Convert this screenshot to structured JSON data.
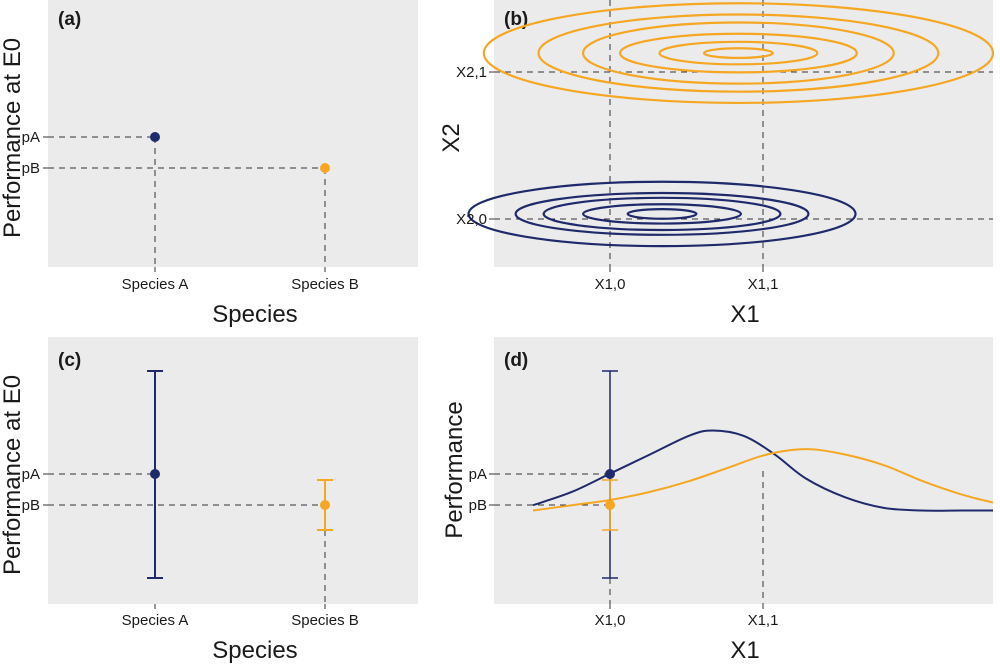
{
  "chart_data": [
    {
      "panel": "(a)",
      "type": "scatter",
      "xlabel": "Species",
      "ylabel": "Performance at E0",
      "categories": [
        "Species A",
        "Species B"
      ],
      "y_tick_labels": [
        "pA",
        "pB"
      ],
      "values": [
        0.72,
        0.62
      ],
      "ylim": [
        0,
        1
      ],
      "colors": [
        "#1f2a6b",
        "#f5a623"
      ]
    },
    {
      "panel": "(b)",
      "type": "line",
      "subtype": "contour",
      "xlabel": "X1",
      "ylabel": "X2",
      "x_tick_labels": [
        "X1,0",
        "X1,1"
      ],
      "x_ticks": [
        1,
        2
      ],
      "y_tick_labels": [
        "X2,0",
        "X2,1"
      ],
      "y_ticks": [
        0,
        1
      ],
      "xlim": [
        0.08,
        4.0
      ],
      "ylim": [
        -0.33,
        1.33
      ],
      "series": [
        {
          "center": [
            1.4,
            0
          ],
          "semi_axes": [
            [
              0.27,
              0.03
            ],
            [
              0.62,
              0.06
            ],
            [
              0.93,
              0.1
            ],
            [
              1.15,
              0.13
            ],
            [
              1.52,
              0.2
            ]
          ],
          "color": "#1f2a6b"
        },
        {
          "center": [
            2.0,
            1
          ],
          "semi_axes": [
            [
              0.27,
              0.03
            ],
            [
              0.62,
              0.07
            ],
            [
              0.93,
              0.12
            ],
            [
              1.22,
              0.19
            ],
            [
              1.57,
              0.24
            ],
            [
              2.0,
              0.31
            ]
          ],
          "color": "#f5a623"
        }
      ]
    },
    {
      "panel": "(c)",
      "type": "scatter",
      "subtype": "error-bar",
      "xlabel": "Species",
      "ylabel": "Performance at E0",
      "categories": [
        "Species A",
        "Species B"
      ],
      "y_tick_labels": [
        "pA",
        "pB"
      ],
      "values": [
        0.55,
        0.42
      ],
      "error_low": [
        0.07,
        0.32
      ],
      "error_high": [
        0.97,
        0.52
      ],
      "ylim": [
        0,
        1
      ],
      "colors": [
        "#1f2a6b",
        "#f5a623"
      ]
    },
    {
      "panel": "(d)",
      "type": "line",
      "xlabel": "X1",
      "ylabel": "Performance",
      "x_tick_labels": [
        "X1,0",
        "X1,1"
      ],
      "x_ticks": [
        1,
        2
      ],
      "y_tick_labels": [
        "pA",
        "pB"
      ],
      "xlim": [
        0.0,
        3.2
      ],
      "ylim": [
        0,
        1
      ],
      "series": [
        {
          "x": [
            0.25,
            0.5,
            0.75,
            1.0,
            1.25,
            1.4,
            1.6,
            1.8,
            2.0,
            2.25,
            2.5,
            2.75,
            3.0,
            3.2
          ],
          "y": [
            0.37,
            0.42,
            0.49,
            0.56,
            0.63,
            0.65,
            0.63,
            0.56,
            0.47,
            0.4,
            0.36,
            0.35,
            0.35,
            0.35
          ],
          "color": "#1f2a6b"
        },
        {
          "x": [
            0.25,
            0.5,
            0.75,
            1.0,
            1.25,
            1.5,
            1.75,
            2.0,
            2.25,
            2.5,
            2.75,
            3.0,
            3.2
          ],
          "y": [
            0.35,
            0.37,
            0.39,
            0.42,
            0.46,
            0.51,
            0.56,
            0.58,
            0.56,
            0.52,
            0.46,
            0.41,
            0.38
          ],
          "color": "#f5a623"
        }
      ],
      "points": [
        {
          "x": 1.0,
          "y": 0.56,
          "color": "#1f2a6b",
          "error_low": 0.07,
          "error_high": 0.97
        },
        {
          "x": 1.0,
          "y": 0.42,
          "color": "#f5a623",
          "error_low": 0.32,
          "error_high": 0.52
        }
      ]
    }
  ]
}
